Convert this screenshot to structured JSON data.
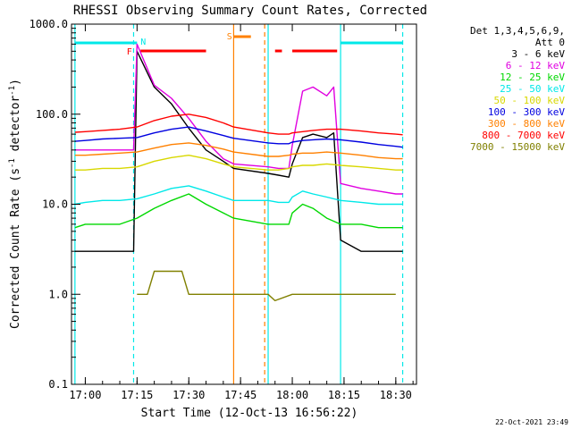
{
  "chart_data": {
    "type": "line",
    "title": "RHESSI Observing Summary Count Rates, Corrected",
    "xlabel": "Start Time (12-Oct-13 16:56:22)",
    "ylabel_prefix": "Corrected Count Rate (s",
    "ylabel_exp1": "-1",
    "ylabel_mid": " detector",
    "ylabel_exp2": "-1",
    "ylabel_suffix": ")",
    "y_scale": "log",
    "ylim": [
      0.1,
      1000
    ],
    "xlim": [
      "16:56",
      "18:36"
    ],
    "x_ticks": [
      "17:00",
      "17:15",
      "17:30",
      "17:45",
      "18:00",
      "18:15",
      "18:30"
    ],
    "y_ticks": [
      "1000.0",
      "100.0",
      "10.0",
      "1.0",
      "0.1"
    ],
    "legend_header": [
      "Det 1,3,4,5,6,9,",
      "Att 0"
    ],
    "legend_placement": "right",
    "series": [
      {
        "name": "3 - 6 keV",
        "color": "#000000",
        "x": [
          "16:57",
          "17:00",
          "17:05",
          "17:10",
          "17:14",
          "17:15",
          "17:20",
          "17:25",
          "17:30",
          "17:35",
          "17:40",
          "17:43",
          "17:53",
          "17:56",
          "17:59",
          "18:00",
          "18:03",
          "18:06",
          "18:10",
          "18:12",
          "18:14",
          "18:20",
          "18:25",
          "18:30",
          "18:32"
        ],
        "values": [
          3,
          3,
          3,
          3,
          3,
          500,
          200,
          130,
          70,
          40,
          30,
          25,
          22,
          21,
          20,
          28,
          55,
          60,
          55,
          62,
          4,
          3,
          3,
          3,
          3
        ]
      },
      {
        "name": "6 - 12 keV",
        "color": "#e000e0",
        "x": [
          "16:57",
          "17:00",
          "17:05",
          "17:10",
          "17:14",
          "17:15",
          "17:20",
          "17:25",
          "17:30",
          "17:35",
          "17:40",
          "17:43",
          "17:53",
          "17:56",
          "17:59",
          "18:00",
          "18:03",
          "18:06",
          "18:10",
          "18:12",
          "18:14",
          "18:20",
          "18:25",
          "18:30",
          "18:32"
        ],
        "values": [
          40,
          40,
          40,
          40,
          40,
          600,
          210,
          150,
          90,
          50,
          32,
          28,
          26,
          25,
          25,
          45,
          180,
          200,
          160,
          200,
          17,
          15,
          14,
          13,
          13
        ]
      },
      {
        "name": "12 - 25 keV",
        "color": "#00d800",
        "x": [
          "16:57",
          "17:00",
          "17:05",
          "17:10",
          "17:15",
          "17:20",
          "17:25",
          "17:30",
          "17:35",
          "17:40",
          "17:43",
          "17:53",
          "17:56",
          "17:59",
          "18:00",
          "18:03",
          "18:06",
          "18:10",
          "18:14",
          "18:20",
          "18:25",
          "18:30",
          "18:32"
        ],
        "values": [
          5.5,
          6,
          6,
          6,
          7,
          9,
          11,
          13,
          10,
          8,
          7,
          6,
          6,
          6,
          8,
          10,
          9,
          7,
          6,
          6,
          5.5,
          5.5,
          5.5
        ]
      },
      {
        "name": "25 - 50 keV",
        "color": "#00e8e8",
        "x": [
          "16:57",
          "17:00",
          "17:05",
          "17:10",
          "17:15",
          "17:20",
          "17:25",
          "17:30",
          "17:35",
          "17:40",
          "17:43",
          "17:53",
          "17:56",
          "17:59",
          "18:00",
          "18:03",
          "18:06",
          "18:10",
          "18:14",
          "18:20",
          "18:25",
          "18:30",
          "18:32"
        ],
        "values": [
          10,
          10.5,
          11,
          11,
          11.5,
          13,
          15,
          16,
          14,
          12,
          11,
          11,
          10.5,
          10.5,
          12,
          14,
          13,
          12,
          11,
          10.5,
          10,
          10,
          10
        ]
      },
      {
        "name": "50 - 100 keV",
        "color": "#d8d800",
        "x": [
          "16:57",
          "17:00",
          "17:05",
          "17:10",
          "17:15",
          "17:20",
          "17:25",
          "17:30",
          "17:35",
          "17:40",
          "17:43",
          "17:53",
          "17:56",
          "17:59",
          "18:00",
          "18:03",
          "18:06",
          "18:10",
          "18:14",
          "18:20",
          "18:25",
          "18:30",
          "18:32"
        ],
        "values": [
          24,
          24,
          25,
          25,
          26,
          30,
          33,
          35,
          32,
          28,
          26,
          24,
          24,
          25,
          26,
          27,
          27,
          28,
          27,
          26,
          25,
          24,
          24
        ]
      },
      {
        "name": "100 - 300 keV",
        "color": "#0000e0",
        "x": [
          "16:57",
          "17:00",
          "17:05",
          "17:10",
          "17:15",
          "17:20",
          "17:25",
          "17:30",
          "17:35",
          "17:40",
          "17:43",
          "17:53",
          "17:56",
          "17:59",
          "18:00",
          "18:03",
          "18:06",
          "18:10",
          "18:14",
          "18:20",
          "18:25",
          "18:30",
          "18:32"
        ],
        "values": [
          50,
          51,
          53,
          54,
          55,
          62,
          68,
          72,
          65,
          58,
          54,
          48,
          47,
          47,
          49,
          51,
          52,
          53,
          52,
          49,
          46,
          44,
          43
        ]
      },
      {
        "name": "300 - 800 keV",
        "color": "#ff8000",
        "x": [
          "16:57",
          "17:00",
          "17:05",
          "17:10",
          "17:15",
          "17:20",
          "17:25",
          "17:30",
          "17:35",
          "17:40",
          "17:43",
          "17:53",
          "17:56",
          "17:59",
          "18:00",
          "18:03",
          "18:06",
          "18:10",
          "18:14",
          "18:20",
          "18:25",
          "18:30",
          "18:32"
        ],
        "values": [
          35,
          35,
          36,
          37,
          38,
          42,
          46,
          48,
          45,
          41,
          38,
          34,
          34,
          35,
          36,
          37,
          37,
          38,
          37,
          35,
          33,
          32,
          32
        ]
      },
      {
        "name": "800 - 7000 keV",
        "color": "#ff0000",
        "x": [
          "16:57",
          "17:00",
          "17:05",
          "17:10",
          "17:15",
          "17:20",
          "17:25",
          "17:30",
          "17:35",
          "17:40",
          "17:43",
          "17:53",
          "17:56",
          "17:59",
          "18:00",
          "18:03",
          "18:06",
          "18:10",
          "18:14",
          "18:20",
          "18:25",
          "18:30",
          "18:32"
        ],
        "values": [
          63,
          64,
          66,
          68,
          72,
          85,
          95,
          100,
          92,
          80,
          72,
          62,
          60,
          60,
          62,
          64,
          66,
          68,
          68,
          65,
          62,
          60,
          59
        ]
      },
      {
        "name": "7000 - 15000 keV",
        "color": "#808000",
        "x": [
          "17:15",
          "17:18",
          "17:20",
          "17:22",
          "17:25",
          "17:28",
          "17:30",
          "17:32",
          "17:35",
          "17:38",
          "17:40",
          "17:53",
          "17:55",
          "18:00",
          "18:03",
          "18:08",
          "18:12",
          "18:15",
          "18:20",
          "18:25",
          "18:30"
        ],
        "values": [
          1,
          1,
          1.8,
          1.8,
          1.8,
          1.8,
          1,
          1,
          1,
          1,
          1,
          1,
          0.85,
          1,
          1,
          1,
          1,
          1,
          1,
          1,
          1
        ]
      }
    ],
    "annotations": [
      {
        "text": "N",
        "color": "#00e8e8"
      },
      {
        "text": "F",
        "color": "#ff0000"
      },
      {
        "text": "S",
        "color": "#ff8000"
      }
    ],
    "flag_bars": [
      {
        "label": "night",
        "color": "#00e8e8",
        "segments": [
          [
            "16:57",
            "17:15"
          ],
          [
            "18:14",
            "18:32"
          ]
        ]
      },
      {
        "label": "flare",
        "color": "#ff0000",
        "segments": [
          [
            "17:16",
            "17:35"
          ],
          [
            "17:55",
            "17:57"
          ],
          [
            "18:00",
            "18:13"
          ]
        ]
      },
      {
        "label": "saa",
        "color": "#ff8000",
        "segments": [
          [
            "17:43",
            "17:48"
          ]
        ]
      }
    ],
    "vlines": [
      {
        "color": "#00e8e8",
        "style": "solid",
        "x": "16:57"
      },
      {
        "color": "#00e8e8",
        "style": "dashed",
        "x": "17:14"
      },
      {
        "color": "#ff8000",
        "style": "solid",
        "x": "17:43"
      },
      {
        "color": "#ff8000",
        "style": "dashed",
        "x": "17:52"
      },
      {
        "color": "#00e8e8",
        "style": "solid",
        "x": "17:53"
      },
      {
        "color": "#00e8e8",
        "style": "solid",
        "x": "18:14"
      },
      {
        "color": "#00e8e8",
        "style": "dashed",
        "x": "18:32"
      }
    ],
    "grid": false
  },
  "footer": {
    "timestamp": "22-Oct-2021 23:49"
  }
}
